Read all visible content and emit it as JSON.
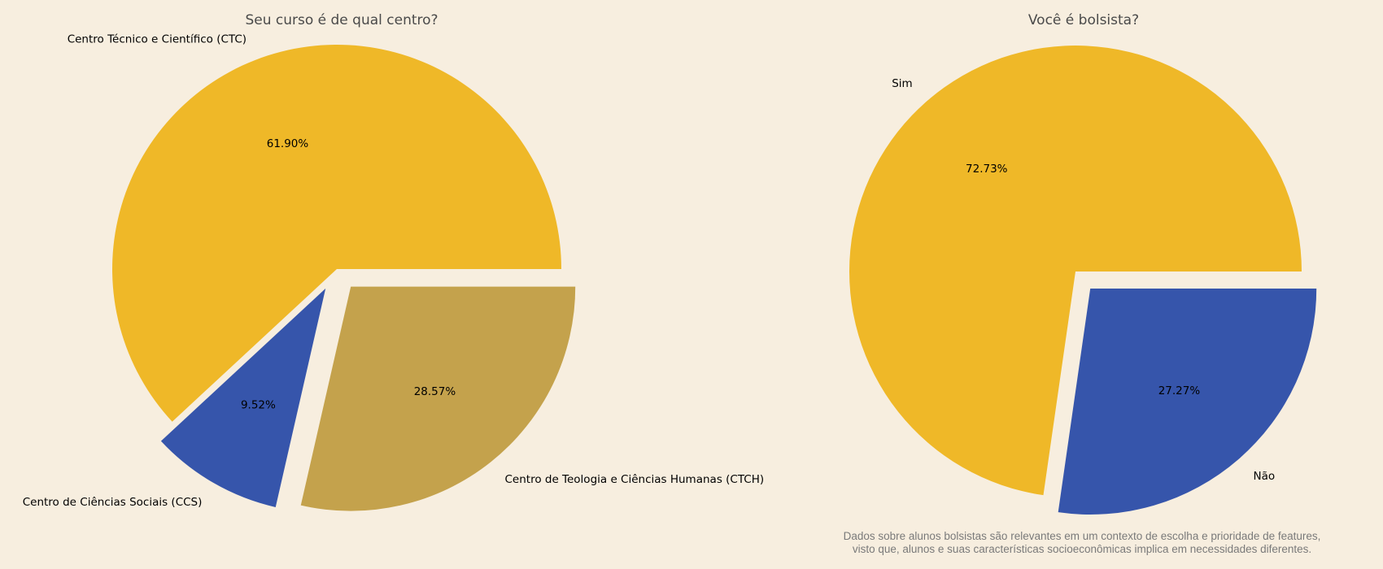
{
  "chart_data": [
    {
      "type": "pie",
      "title": "Seu curso é de qual centro?",
      "slices": [
        {
          "label": "Centro Técnico e Científico (CTC)",
          "value": 61.9,
          "pct_label": "61.90%",
          "color": "#EFB828",
          "explode": false
        },
        {
          "label": "Centro de Ciências Sociais (CCS)",
          "value": 9.52,
          "pct_label": "9.52%",
          "color": "#3655AB",
          "explode": true
        },
        {
          "label": "Centro de Teologia e Ciências Humanas (CTCH)",
          "value": 28.57,
          "pct_label": "28.57%",
          "color": "#C4A24C",
          "explode": true
        }
      ]
    },
    {
      "type": "pie",
      "title": "Você é bolsista?",
      "slices": [
        {
          "label": "Sim",
          "value": 72.73,
          "pct_label": "72.73%",
          "color": "#EFB828",
          "explode": false
        },
        {
          "label": "Não",
          "value": 27.27,
          "pct_label": "27.27%",
          "color": "#3655AB",
          "explode": true
        }
      ]
    }
  ],
  "footnote": {
    "line1": "Dados sobre alunos bolsistas são relevantes em um contexto de escolha e prioridade de features,",
    "line2": "visto que, alunos e suas características socioeconômicas implica em necessidades diferentes."
  }
}
